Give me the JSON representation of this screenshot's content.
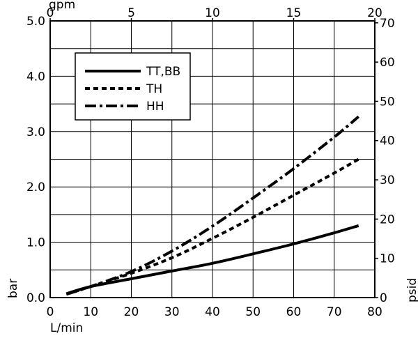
{
  "chart_data": {
    "type": "line",
    "xlabel": "L/min",
    "ylabel": "bar",
    "x2label": "gpm",
    "y2label": "psid",
    "xlim": [
      0,
      80
    ],
    "ylim": [
      0.0,
      5.0
    ],
    "x2lim": [
      0,
      20
    ],
    "y2lim": [
      0,
      70
    ],
    "xticks": [
      "0",
      "10",
      "20",
      "30",
      "40",
      "50",
      "60",
      "70",
      "80"
    ],
    "yticks": [
      "0.0",
      "1.0",
      "2.0",
      "3.0",
      "4.0",
      "5.0"
    ],
    "x2ticks": [
      "0",
      "5",
      "10",
      "15",
      "20"
    ],
    "y2ticks": [
      "0",
      "10",
      "20",
      "30",
      "40",
      "50",
      "60",
      "70"
    ],
    "grid": true,
    "legend_position": "top-left",
    "series": [
      {
        "name": "TT,BB",
        "style": "solid",
        "x": [
          4,
          10,
          20,
          30,
          40,
          50,
          60,
          70,
          76
        ],
        "y": [
          0.07,
          0.2,
          0.34,
          0.48,
          0.62,
          0.79,
          0.97,
          1.17,
          1.3
        ]
      },
      {
        "name": "TH",
        "style": "dashed",
        "x": [
          4,
          10,
          20,
          30,
          40,
          50,
          60,
          70,
          76
        ],
        "y": [
          0.06,
          0.2,
          0.44,
          0.72,
          1.07,
          1.45,
          1.85,
          2.25,
          2.5
        ]
      },
      {
        "name": "HH",
        "style": "dash-dot",
        "x": [
          4,
          10,
          20,
          30,
          40,
          50,
          60,
          70,
          76
        ],
        "y": [
          0.06,
          0.2,
          0.47,
          0.84,
          1.29,
          1.8,
          2.33,
          2.9,
          3.27
        ]
      }
    ]
  }
}
